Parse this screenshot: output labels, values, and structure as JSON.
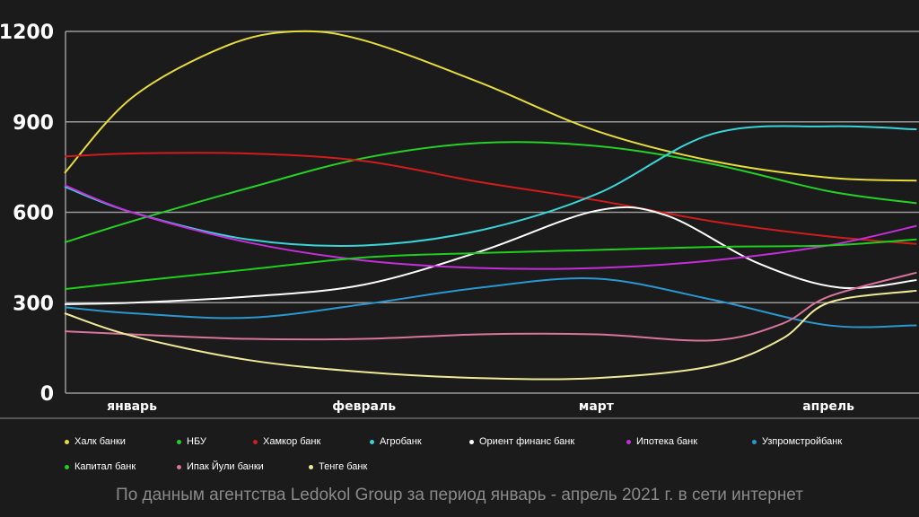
{
  "chart_data": {
    "type": "line",
    "title": "",
    "xlabel": "",
    "ylabel": "",
    "categories": [
      "январь",
      "февраль",
      "март",
      "апрель"
    ],
    "x_range": [
      -0.29,
      3.38
    ],
    "ylim": [
      0,
      1200
    ],
    "yticks": [
      0,
      300,
      600,
      900,
      1200
    ],
    "grid": true,
    "legend_position": "bottom",
    "series": [
      {
        "name": "Халк банки",
        "color": "#e6dc3c",
        "points": [
          [
            -0.29,
            730
          ],
          [
            0,
            980
          ],
          [
            0.4,
            1150
          ],
          [
            0.7,
            1200
          ],
          [
            1,
            1170
          ],
          [
            1.5,
            1030
          ],
          [
            2,
            870
          ],
          [
            2.5,
            770
          ],
          [
            3,
            715
          ],
          [
            3.38,
            705
          ]
        ]
      },
      {
        "name": "НБУ",
        "color": "#26d126",
        "points": [
          [
            -0.29,
            500
          ],
          [
            0,
            570
          ],
          [
            0.5,
            680
          ],
          [
            1,
            780
          ],
          [
            1.5,
            830
          ],
          [
            2,
            820
          ],
          [
            2.5,
            760
          ],
          [
            3,
            670
          ],
          [
            3.38,
            630
          ]
        ]
      },
      {
        "name": "Хамкор банк",
        "color": "#d11c1c",
        "points": [
          [
            -0.29,
            785
          ],
          [
            0,
            795
          ],
          [
            0.5,
            795
          ],
          [
            1,
            770
          ],
          [
            1.5,
            700
          ],
          [
            2,
            640
          ],
          [
            2.5,
            570
          ],
          [
            3,
            520
          ],
          [
            3.38,
            495
          ]
        ]
      },
      {
        "name": "Агробанк",
        "color": "#3ad4d8",
        "points": [
          [
            -0.29,
            685
          ],
          [
            0,
            600
          ],
          [
            0.5,
            510
          ],
          [
            1,
            490
          ],
          [
            1.5,
            540
          ],
          [
            2,
            660
          ],
          [
            2.5,
            860
          ],
          [
            3,
            885
          ],
          [
            3.38,
            875
          ]
        ]
      },
      {
        "name": "Ориент финанс банк",
        "color": "#ffffff",
        "points": [
          [
            -0.29,
            295
          ],
          [
            0,
            300
          ],
          [
            0.5,
            320
          ],
          [
            1,
            360
          ],
          [
            1.5,
            470
          ],
          [
            2,
            605
          ],
          [
            2.3,
            590
          ],
          [
            2.7,
            430
          ],
          [
            3.05,
            350
          ],
          [
            3.38,
            375
          ]
        ]
      },
      {
        "name": "Ипотека банк",
        "color": "#c42ed8",
        "points": [
          [
            -0.29,
            690
          ],
          [
            0,
            600
          ],
          [
            0.5,
            500
          ],
          [
            1,
            440
          ],
          [
            1.5,
            415
          ],
          [
            2,
            415
          ],
          [
            2.5,
            440
          ],
          [
            3,
            490
          ],
          [
            3.38,
            555
          ]
        ]
      },
      {
        "name": "Узпромстройбанк",
        "color": "#2a98cf",
        "points": [
          [
            -0.29,
            285
          ],
          [
            0,
            265
          ],
          [
            0.5,
            250
          ],
          [
            1,
            295
          ],
          [
            1.5,
            350
          ],
          [
            2,
            380
          ],
          [
            2.5,
            310
          ],
          [
            3,
            225
          ],
          [
            3.38,
            225
          ]
        ]
      },
      {
        "name": "Капитал банк",
        "color": "#1ecf1e",
        "points": [
          [
            -0.29,
            345
          ],
          [
            0,
            370
          ],
          [
            0.5,
            410
          ],
          [
            1,
            450
          ],
          [
            1.5,
            465
          ],
          [
            2,
            475
          ],
          [
            2.5,
            485
          ],
          [
            3,
            490
          ],
          [
            3.38,
            510
          ]
        ]
      },
      {
        "name": "Ипак Йули банки",
        "color": "#d9749a",
        "points": [
          [
            -0.29,
            205
          ],
          [
            0,
            195
          ],
          [
            0.5,
            180
          ],
          [
            1,
            180
          ],
          [
            1.5,
            195
          ],
          [
            2,
            195
          ],
          [
            2.5,
            175
          ],
          [
            2.8,
            230
          ],
          [
            3,
            320
          ],
          [
            3.38,
            400
          ]
        ]
      },
      {
        "name": "Тенге банк",
        "color": "#efe99a",
        "points": [
          [
            -0.29,
            265
          ],
          [
            0,
            190
          ],
          [
            0.5,
            110
          ],
          [
            1,
            70
          ],
          [
            1.5,
            50
          ],
          [
            2,
            50
          ],
          [
            2.5,
            90
          ],
          [
            2.8,
            180
          ],
          [
            3,
            300
          ],
          [
            3.38,
            340
          ]
        ]
      }
    ]
  },
  "footer": "По данным агентства Ledokol Group за период январь - апрель 2021 г. в сети интернет"
}
